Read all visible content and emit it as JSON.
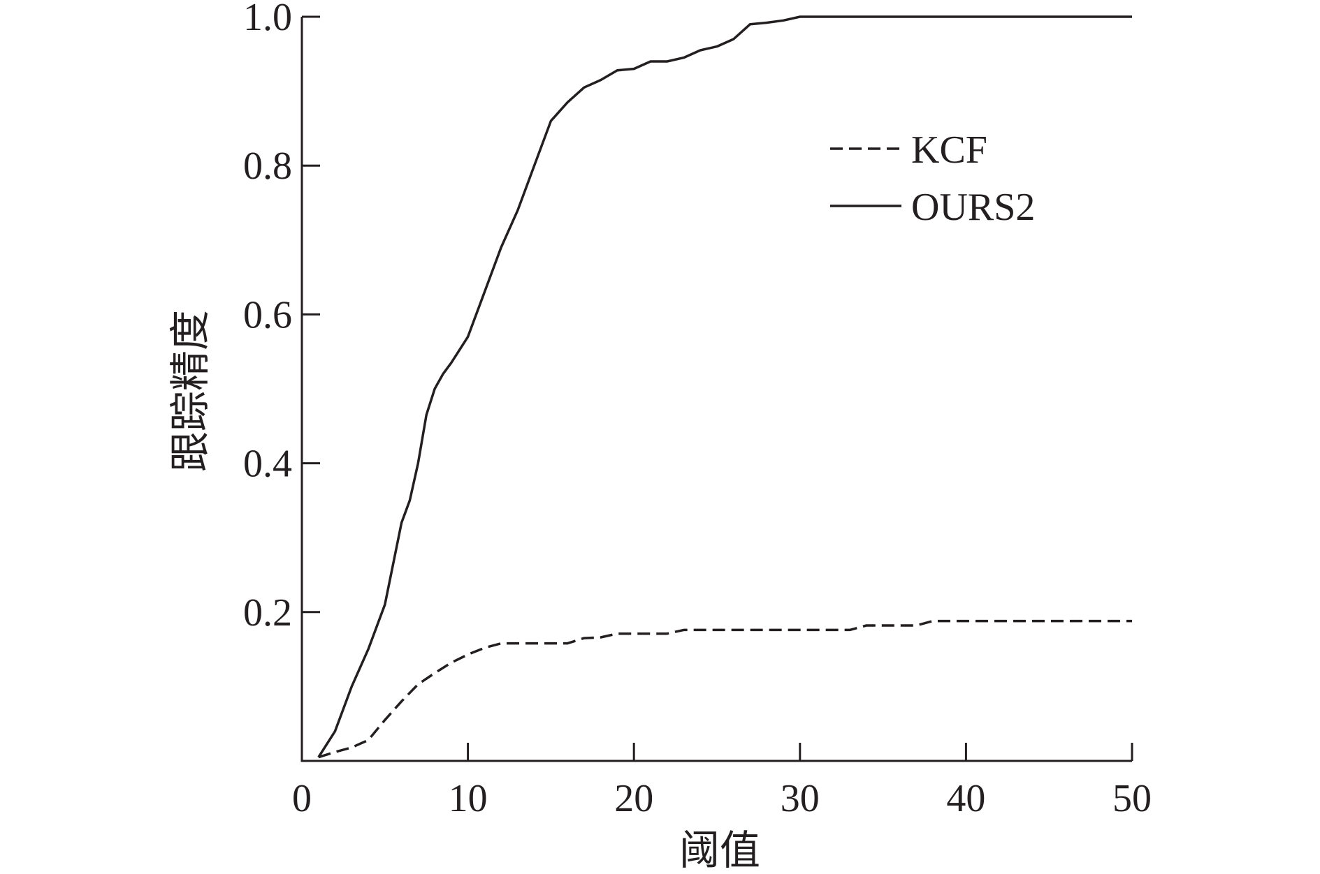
{
  "chart_data": {
    "type": "line",
    "title": "",
    "xlabel": "阈值",
    "ylabel": "跟踪精度",
    "xlim": [
      0,
      50
    ],
    "ylim": [
      0,
      1.0
    ],
    "xticks": [
      0,
      10,
      20,
      30,
      40,
      50
    ],
    "xtick_labels": [
      "0",
      "10",
      "20",
      "30",
      "40",
      "50"
    ],
    "yticks": [
      0.2,
      0.4,
      0.6,
      0.8,
      1.0
    ],
    "ytick_labels": [
      "0.2",
      "0.4",
      "0.6",
      "0.8",
      "1.0"
    ],
    "grid": false,
    "legend_position": "top-right",
    "colors": {
      "ink": "#231f20"
    },
    "series": [
      {
        "name": "KCF",
        "style": "dashed",
        "x": [
          1,
          2,
          3,
          4,
          5,
          6,
          7,
          8,
          9,
          10,
          11,
          12,
          13,
          14,
          15,
          16,
          17,
          18,
          19,
          20,
          21,
          22,
          23,
          24,
          25,
          26,
          27,
          28,
          29,
          30,
          31,
          32,
          33,
          34,
          35,
          36,
          37,
          38,
          39,
          40,
          41,
          42,
          43,
          44,
          45,
          46,
          47,
          48,
          49,
          50
        ],
        "y": [
          0.005,
          0.012,
          0.018,
          0.028,
          0.055,
          0.08,
          0.103,
          0.118,
          0.132,
          0.143,
          0.152,
          0.158,
          0.158,
          0.158,
          0.158,
          0.158,
          0.165,
          0.166,
          0.171,
          0.171,
          0.171,
          0.171,
          0.176,
          0.176,
          0.176,
          0.176,
          0.176,
          0.176,
          0.176,
          0.176,
          0.176,
          0.176,
          0.176,
          0.182,
          0.182,
          0.182,
          0.182,
          0.188,
          0.188,
          0.188,
          0.188,
          0.188,
          0.188,
          0.188,
          0.188,
          0.188,
          0.188,
          0.188,
          0.188,
          0.188
        ]
      },
      {
        "name": "OURS2",
        "style": "solid",
        "x": [
          1,
          2,
          3,
          4,
          5,
          6,
          6.5,
          7,
          7.5,
          8,
          8.5,
          9,
          10,
          11,
          12,
          13,
          14,
          15,
          16,
          17,
          18,
          19,
          20,
          21,
          22,
          23,
          24,
          25,
          26,
          27,
          28,
          29,
          30,
          31,
          32,
          33,
          34,
          35,
          36,
          37,
          38,
          39,
          40,
          41,
          42,
          43,
          44,
          45,
          46,
          47,
          48,
          49,
          50
        ],
        "y": [
          0.005,
          0.04,
          0.1,
          0.15,
          0.21,
          0.32,
          0.35,
          0.4,
          0.465,
          0.5,
          0.52,
          0.535,
          0.57,
          0.63,
          0.69,
          0.74,
          0.8,
          0.86,
          0.885,
          0.905,
          0.915,
          0.928,
          0.93,
          0.94,
          0.94,
          0.945,
          0.955,
          0.96,
          0.97,
          0.99,
          0.992,
          0.995,
          1.0,
          1.0,
          1.0,
          1.0,
          1.0,
          1.0,
          1.0,
          1.0,
          1.0,
          1.0,
          1.0,
          1.0,
          1.0,
          1.0,
          1.0,
          1.0,
          1.0,
          1.0,
          1.0,
          1.0,
          1.0
        ]
      }
    ]
  }
}
